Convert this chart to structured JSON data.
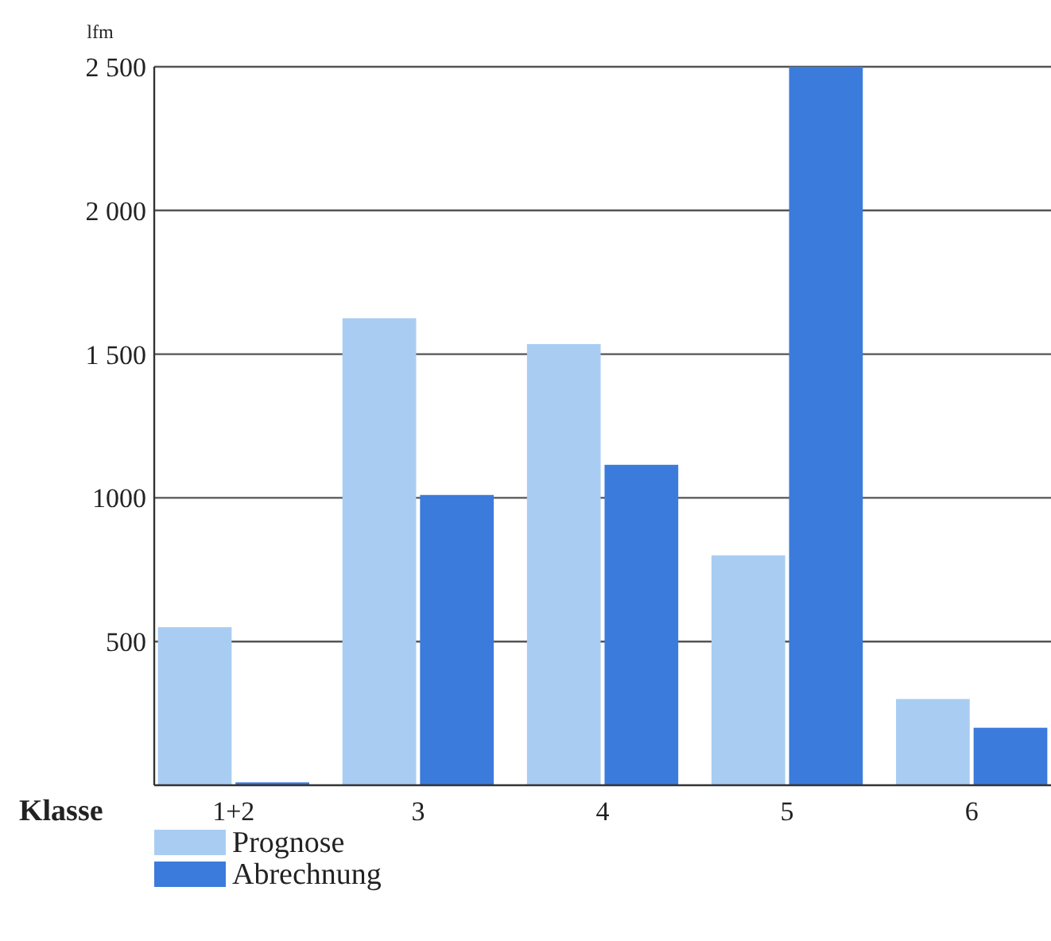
{
  "chart_data": {
    "type": "bar",
    "ylabel": "lfm",
    "xlabel": "Klasse",
    "categories": [
      "1+2",
      "3",
      "4",
      "5",
      "6"
    ],
    "series": [
      {
        "name": "Prognose",
        "color": "#a9cdf2",
        "values": [
          550,
          1625,
          1535,
          800,
          300
        ]
      },
      {
        "name": "Abrechnung",
        "color": "#3b7bdb",
        "values": [
          10,
          1010,
          1115,
          2500,
          200
        ]
      }
    ],
    "ylim": [
      0,
      2500
    ],
    "yticks": [
      {
        "value": 0,
        "label": null
      },
      {
        "value": 500,
        "label": "500"
      },
      {
        "value": 1000,
        "label": "1000"
      },
      {
        "value": 1500,
        "label": "1 500"
      },
      {
        "value": 2000,
        "label": "2 000"
      },
      {
        "value": 2500,
        "label": "2 500"
      }
    ],
    "grid": "y",
    "legend": "bottom left"
  }
}
